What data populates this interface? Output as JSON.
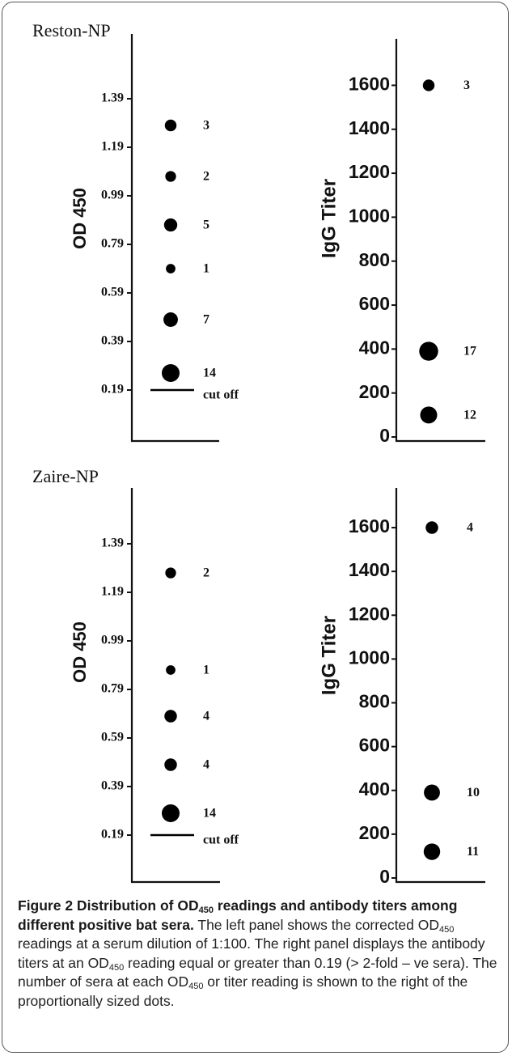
{
  "chart_data": [
    {
      "type": "scatter",
      "panel": "Reston-NP",
      "ylabel": "OD 450",
      "ytick_labels": [
        "0.19",
        "0.39",
        "0.59",
        "0.79",
        "0.99",
        "1.19",
        "1.39"
      ],
      "ylim": [
        0.0,
        1.6
      ],
      "points": [
        {
          "y": 1.28,
          "count": 3,
          "label": "3"
        },
        {
          "y": 1.07,
          "count": 2,
          "label": "2"
        },
        {
          "y": 0.87,
          "count": 5,
          "label": "5"
        },
        {
          "y": 0.69,
          "count": 1,
          "label": "1"
        },
        {
          "y": 0.48,
          "count": 7,
          "label": "7"
        },
        {
          "y": 0.26,
          "count": 14,
          "label": "14"
        }
      ],
      "cutoff": {
        "y": 0.19,
        "label": "cut off"
      }
    },
    {
      "type": "scatter",
      "panel": "",
      "ylabel": "IgG Titer",
      "ytick_labels": [
        "0",
        "200",
        "400",
        "600",
        "800",
        "1000",
        "1200",
        "1400",
        "1600"
      ],
      "ylim": [
        0,
        1800
      ],
      "points": [
        {
          "y": 1600,
          "count": 3,
          "label": "3"
        },
        {
          "y": 390,
          "count": 17,
          "label": "17"
        },
        {
          "y": 100,
          "count": 12,
          "label": "12"
        }
      ]
    },
    {
      "type": "scatter",
      "panel": "Zaire-NP",
      "ylabel": "OD 450",
      "ytick_labels": [
        "0.19",
        "0.39",
        "0.59",
        "0.79",
        "0.99",
        "1.19",
        "1.39"
      ],
      "ylim": [
        0.0,
        1.6
      ],
      "points": [
        {
          "y": 1.27,
          "count": 2,
          "label": "2"
        },
        {
          "y": 0.87,
          "count": 1,
          "label": "1"
        },
        {
          "y": 0.68,
          "count": 4,
          "label": "4"
        },
        {
          "y": 0.48,
          "count": 4,
          "label": "4"
        },
        {
          "y": 0.28,
          "count": 14,
          "label": "14"
        }
      ],
      "cutoff": {
        "y": 0.19,
        "label": "cut off"
      }
    },
    {
      "type": "scatter",
      "panel": "",
      "ylabel": "IgG Titer",
      "ytick_labels": [
        "0",
        "200",
        "400",
        "600",
        "800",
        "1000",
        "1200",
        "1400",
        "1600"
      ],
      "ylim": [
        0,
        1800
      ],
      "points": [
        {
          "y": 1600,
          "count": 4,
          "label": "4"
        },
        {
          "y": 390,
          "count": 10,
          "label": "10"
        },
        {
          "y": 120,
          "count": 11,
          "label": "11"
        }
      ]
    }
  ],
  "caption": {
    "title_pre": "Figure 2 Distribution of OD",
    "title_sub": "450",
    "title_post": " readings and antibody titers among different positive bat sera.",
    "s1_pre": " The left panel shows the corrected OD",
    "s1_sub": "450",
    "s1_post": " readings at a serum dilution of 1:100. The right panel displays the antibody titers at an OD",
    "s2_sub": "450",
    "s2_post": " reading equal or greater than 0.19 (> 2-fold – ve sera). The number of sera at each OD",
    "s3_sub": "450",
    "s3_post": " or titer reading is shown to the right of the proportionally sized dots."
  }
}
